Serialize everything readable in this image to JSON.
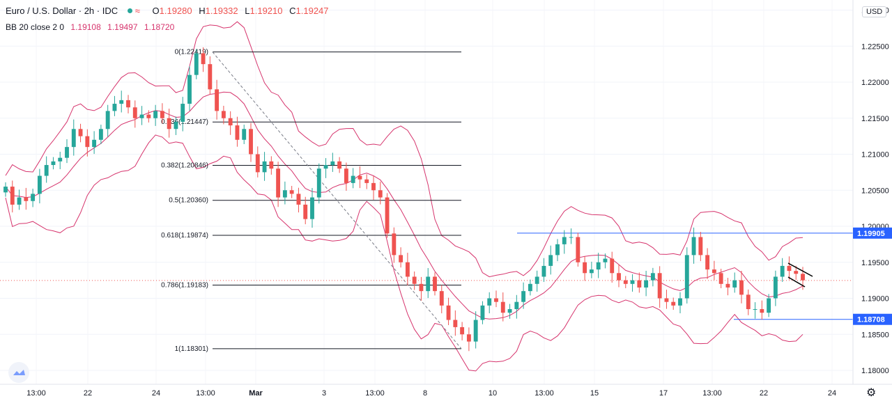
{
  "header": {
    "symbol": "Euro / U.S. Dollar · 2h · IDC",
    "open_label": "O",
    "open": "1.19280",
    "high_label": "H",
    "high": "1.19332",
    "low_label": "L",
    "low": "1.19210",
    "close_label": "C",
    "close": "1.19247",
    "indicator": "BB 20 close 2 0",
    "bb_basis": "1.19108",
    "bb_upper": "1.19497",
    "bb_lower": "1.18720"
  },
  "currency_label": "USD",
  "colors": {
    "up": "#26a69a",
    "down": "#ef5350",
    "bb": "#d6336c",
    "hline": "#2962ff",
    "fib": "#131722"
  },
  "chart_data": {
    "type": "candlestick",
    "y_axis": {
      "min": 1.1775,
      "max": 1.228,
      "tick_labels": [
        "1.18000",
        "1.18500",
        "1.19000",
        "1.19500",
        "1.20000",
        "1.20500",
        "1.21000",
        "1.21500",
        "1.22000",
        "1.22500",
        "1.23000"
      ]
    },
    "x_axis": {
      "tick_labels": [
        "13:00",
        "22",
        "24",
        "13:00",
        "Mar",
        "3",
        "13:00",
        "8",
        "10",
        "13:00",
        "15",
        "17",
        "13:00",
        "22",
        "24"
      ]
    },
    "price_labels": [
      "1.19905",
      "1.18708"
    ],
    "horizontal_lines": [
      1.19905,
      1.18708
    ],
    "fibonacci": [
      {
        "label": "0(1.22419)",
        "value": 1.22419
      },
      {
        "label": "0.236(1.21447)",
        "value": 1.21447
      },
      {
        "label": "0.382(1.20846)",
        "value": 1.20846
      },
      {
        "label": "0.5(1.20360)",
        "value": 1.2036
      },
      {
        "label": "0.618(1.19874)",
        "value": 1.19874
      },
      {
        "label": "0.786(1.19183)",
        "value": 1.19183
      },
      {
        "label": "1(1.18301)",
        "value": 1.18301
      }
    ],
    "last_close": 1.19247,
    "closes": [
      1.2055,
      1.203,
      1.204,
      1.2035,
      1.2045,
      1.207,
      1.2085,
      1.209,
      1.2095,
      1.211,
      1.2135,
      1.2125,
      1.211,
      1.212,
      1.2135,
      1.216,
      1.217,
      1.2175,
      1.2165,
      1.215,
      1.2155,
      1.215,
      1.216,
      1.215,
      1.2135,
      1.2145,
      1.217,
      1.221,
      1.224,
      1.2225,
      1.219,
      1.216,
      1.215,
      1.214,
      1.212,
      1.2135,
      1.21,
      1.2075,
      1.209,
      1.208,
      1.204,
      1.205,
      1.2045,
      1.203,
      1.201,
      1.204,
      1.208,
      1.2085,
      1.209,
      1.208,
      1.206,
      1.207,
      1.2065,
      1.206,
      1.205,
      1.204,
      1.199,
      1.196,
      1.195,
      1.193,
      1.192,
      1.191,
      1.193,
      1.191,
      1.189,
      1.187,
      1.186,
      1.185,
      1.184,
      1.187,
      1.189,
      1.19,
      1.1895,
      1.188,
      1.1885,
      1.1895,
      1.191,
      1.192,
      1.193,
      1.1945,
      1.196,
      1.1975,
      1.1985,
      1.1985,
      1.195,
      1.1935,
      1.194,
      1.195,
      1.1955,
      1.1935,
      1.1925,
      1.192,
      1.1925,
      1.1915,
      1.1925,
      1.1935,
      1.19,
      1.1895,
      1.189,
      1.19,
      1.196,
      1.1985,
      1.196,
      1.194,
      1.1935,
      1.192,
      1.1915,
      1.1925,
      1.1905,
      1.1885,
      1.1885,
      1.188,
      1.19,
      1.193,
      1.1945,
      1.1938,
      1.1934,
      1.1925
    ]
  }
}
